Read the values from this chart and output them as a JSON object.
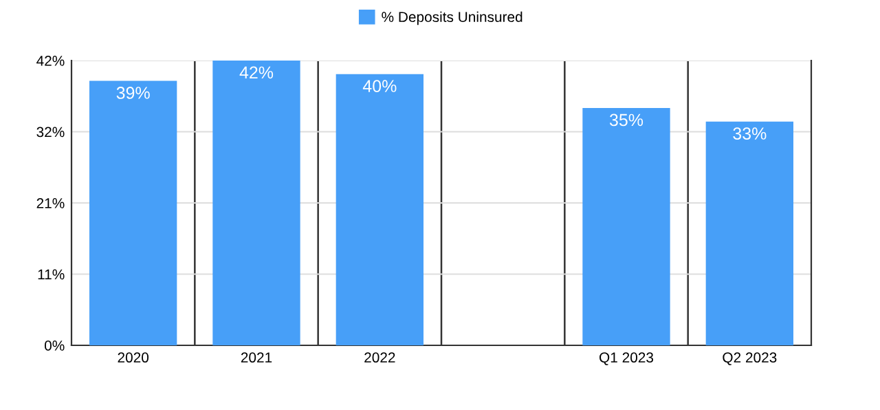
{
  "chart_data": {
    "type": "bar",
    "categories": [
      "2020",
      "2021",
      "2022",
      null,
      "Q1 2023",
      "Q2 2023"
    ],
    "series": [
      {
        "name": "% Deposits Uninsured",
        "color": "#479ff8",
        "values": [
          39,
          42,
          40,
          null,
          35,
          33
        ],
        "value_labels": [
          "39%",
          "42%",
          "40%",
          null,
          "35%",
          "33%"
        ]
      }
    ],
    "ylim": [
      0,
      42
    ],
    "yticks": [
      {
        "value": 0,
        "label": "0%"
      },
      {
        "value": 10.5,
        "label": "11%"
      },
      {
        "value": 21,
        "label": "21%"
      },
      {
        "value": 31.5,
        "label": "32%"
      },
      {
        "value": 42,
        "label": "42%"
      }
    ],
    "grid": true,
    "legend": "top"
  }
}
